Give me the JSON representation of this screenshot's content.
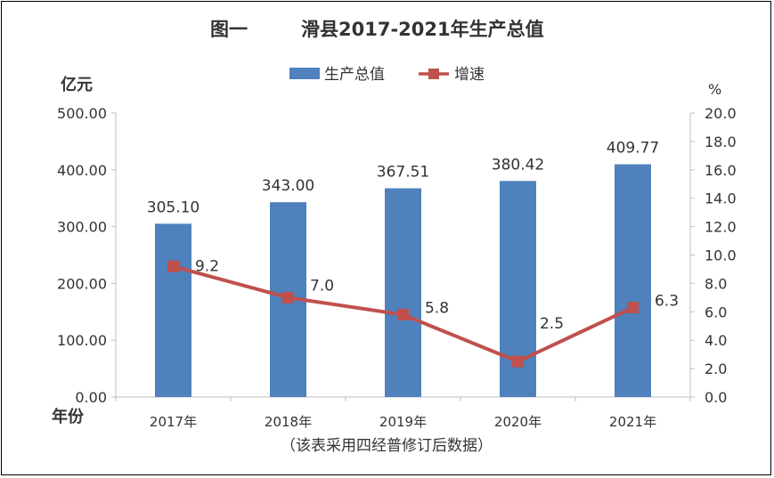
{
  "chart_data": {
    "type": "bar",
    "title_prefix": "图一",
    "title": "滑县2017-2021年生产总值",
    "y_left_label": "亿元",
    "y_right_label": "%",
    "x_label": "年份",
    "footnote": "（该表采用四经普修订后数据）",
    "categories": [
      "2017年",
      "2018年",
      "2019年",
      "2020年",
      "2021年"
    ],
    "series": [
      {
        "name": "生产总值",
        "type": "bar",
        "axis": "left",
        "values": [
          305.1,
          343.0,
          367.51,
          380.42,
          409.77
        ],
        "labels": [
          "305.10",
          "343.00",
          "367.51",
          "380.42",
          "409.77"
        ],
        "color": "#4f81bd"
      },
      {
        "name": "增速",
        "type": "line",
        "axis": "right",
        "values": [
          9.2,
          7.0,
          5.8,
          2.5,
          6.3
        ],
        "labels": [
          "9.2",
          "7.0",
          "5.8",
          "2.5",
          "6.3"
        ],
        "color": "#c0504d"
      }
    ],
    "y_left": {
      "min": 0,
      "max": 500,
      "step": 100,
      "ticks": [
        "0.00",
        "100.00",
        "200.00",
        "300.00",
        "400.00",
        "500.00"
      ]
    },
    "y_right": {
      "min": 0,
      "max": 20,
      "step": 2,
      "ticks": [
        "0.0",
        "2.0",
        "4.0",
        "6.0",
        "8.0",
        "10.0",
        "12.0",
        "14.0",
        "16.0",
        "18.0",
        "20.0"
      ]
    },
    "grid": false,
    "legend_position": "top-center"
  }
}
